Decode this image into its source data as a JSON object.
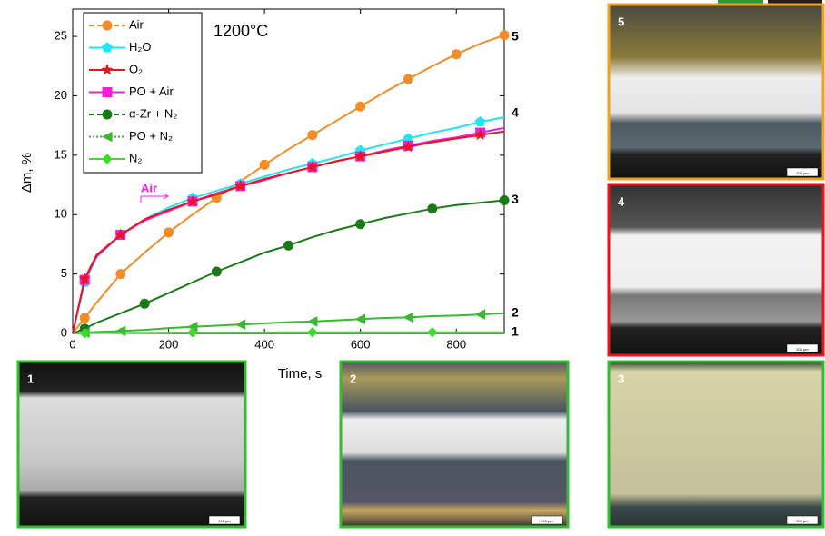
{
  "chart_data": {
    "type": "line",
    "x_label": "Time, s",
    "y_label": "Δm, %",
    "annotations": [
      "1200°C",
      "Air"
    ],
    "x": [
      0,
      25,
      50,
      100,
      150,
      200,
      250,
      300,
      350,
      400,
      450,
      500,
      550,
      600,
      650,
      700,
      750,
      800,
      850,
      900
    ],
    "series": [
      {
        "name": "Air",
        "color": "#f28c28",
        "linestyle": "dashed",
        "marker": "circle",
        "end_label": "5",
        "values": [
          0,
          1.3,
          2.6,
          5.0,
          6.8,
          8.5,
          10.0,
          11.4,
          12.8,
          14.2,
          15.5,
          16.7,
          17.9,
          19.1,
          20.3,
          21.4,
          22.5,
          23.5,
          24.4,
          25.1
        ]
      },
      {
        "name": "H₂O",
        "color": "#22e5f0",
        "linestyle": "solid",
        "marker": "pentagon",
        "end_label": "4",
        "values": [
          0,
          4.3,
          6.4,
          8.3,
          9.6,
          10.6,
          11.4,
          12.0,
          12.6,
          13.2,
          13.8,
          14.3,
          14.8,
          15.4,
          15.9,
          16.4,
          16.9,
          17.3,
          17.8,
          18.2
        ]
      },
      {
        "name": "O₂",
        "color": "#e8141e",
        "linestyle": "solid",
        "marker": "star",
        "values": [
          0,
          4.6,
          6.6,
          8.3,
          9.6,
          10.4,
          11.1,
          11.7,
          12.4,
          13.0,
          13.5,
          14.0,
          14.5,
          14.9,
          15.3,
          15.7,
          16.1,
          16.4,
          16.7,
          17.0
        ]
      },
      {
        "name": "PO + Air",
        "color": "#f020d8",
        "linestyle": "solid",
        "marker": "square",
        "values": [
          0,
          4.5,
          6.5,
          8.3,
          9.5,
          10.3,
          11.1,
          11.8,
          12.4,
          12.9,
          13.5,
          14.0,
          14.5,
          14.9,
          15.4,
          15.8,
          16.2,
          16.5,
          16.9,
          17.3
        ]
      },
      {
        "name": "α-Zr + N₂",
        "color": "#1a7a1a",
        "linestyle": "dashed",
        "marker": "circle",
        "end_label": "3",
        "values": [
          0,
          0.4,
          0.9,
          1.7,
          2.5,
          3.4,
          4.3,
          5.2,
          6.0,
          6.8,
          7.4,
          8.1,
          8.7,
          9.2,
          9.7,
          10.1,
          10.5,
          10.8,
          11.0,
          11.2
        ]
      },
      {
        "name": "PO + N₂",
        "color": "#3cb832",
        "linestyle": "dotted",
        "marker": "triangle-left",
        "end_label": "2",
        "values": [
          0,
          0.06,
          0.12,
          0.2,
          0.3,
          0.45,
          0.55,
          0.65,
          0.75,
          0.85,
          0.95,
          1.0,
          1.1,
          1.2,
          1.3,
          1.35,
          1.45,
          1.5,
          1.6,
          1.7
        ]
      },
      {
        "name": "N₂",
        "color": "#3cdc28",
        "linestyle": "solid",
        "marker": "diamond",
        "end_label": "1",
        "values": [
          0,
          0.02,
          0.03,
          0.05,
          0.06,
          0.07,
          0.08,
          0.08,
          0.09,
          0.09,
          0.1,
          0.1,
          0.1,
          0.1,
          0.1,
          0.1,
          0.1,
          0.1,
          0.1,
          0.1
        ]
      }
    ],
    "xlim": [
      0,
      900
    ],
    "xticks": [
      0,
      200,
      400,
      600,
      800
    ],
    "ylim": [
      0,
      27.3
    ],
    "yticks": [
      0,
      5,
      10,
      15,
      20,
      25
    ],
    "legend": "upper left"
  },
  "panels": [
    {
      "label": "1",
      "scale": "200 µm"
    },
    {
      "label": "2",
      "scale": "200 µm"
    },
    {
      "label": "3",
      "scale": "200 µm"
    },
    {
      "label": "4",
      "scale": "200 µm"
    },
    {
      "label": "5",
      "scale": "200 µm"
    }
  ]
}
